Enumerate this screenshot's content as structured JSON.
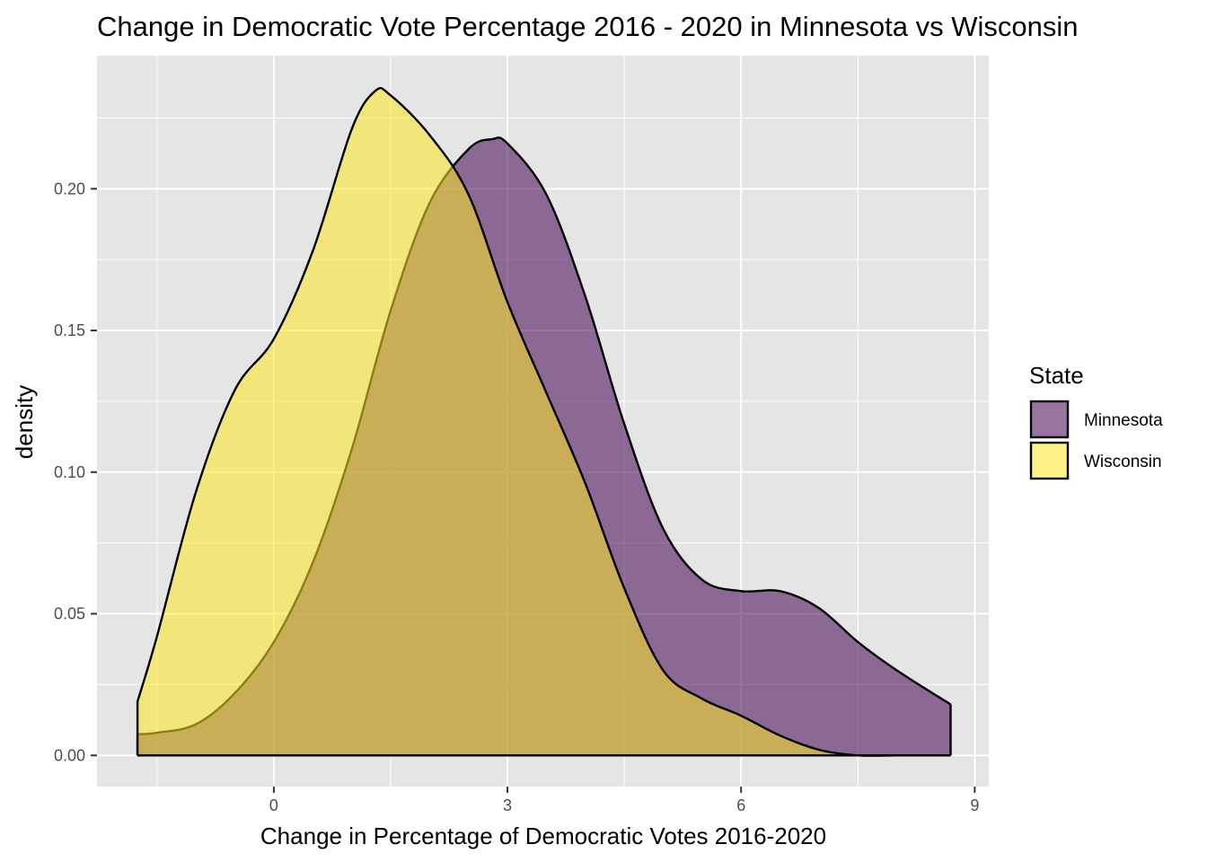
{
  "chart_data": {
    "type": "area",
    "title": "Change in Democratic Vote Percentage 2016 - 2020 in Minnesota vs Wisconsin",
    "xlabel": "Change in Percentage of Democratic Votes 2016-2020",
    "ylabel": "density",
    "xlim": [
      -2.27,
      9.18
    ],
    "ylim": [
      -0.011,
      0.247
    ],
    "x_ticks": [
      0,
      3,
      6,
      9
    ],
    "x_tick_labels": [
      "0",
      "3",
      "6",
      "9"
    ],
    "y_ticks": [
      0.0,
      0.05,
      0.1,
      0.15,
      0.2
    ],
    "y_tick_labels": [
      "0.00",
      "0.05",
      "0.10",
      "0.15",
      "0.20"
    ],
    "grid": true,
    "legend": {
      "title": "State",
      "placement": "right"
    },
    "colors": {
      "panel": "#e5e5e5",
      "grid": "#ffffff",
      "outline": "#000000"
    },
    "series": [
      {
        "name": "Minnesota",
        "fill": "#440154",
        "alpha": 0.55,
        "x": [
          -1.75,
          -1.5,
          -1.0,
          -0.5,
          0.0,
          0.5,
          1.0,
          1.5,
          2.0,
          2.5,
          2.8,
          3.0,
          3.5,
          4.0,
          4.5,
          5.0,
          5.5,
          6.0,
          6.5,
          7.0,
          7.5,
          8.0,
          8.69
        ],
        "y": [
          0.0075,
          0.008,
          0.011,
          0.022,
          0.04,
          0.068,
          0.108,
          0.157,
          0.195,
          0.214,
          0.2175,
          0.216,
          0.198,
          0.162,
          0.117,
          0.08,
          0.062,
          0.058,
          0.058,
          0.052,
          0.04,
          0.03,
          0.018
        ]
      },
      {
        "name": "Wisconsin",
        "fill": "#fde725",
        "alpha": 0.55,
        "x": [
          -1.75,
          -1.5,
          -1.0,
          -0.5,
          0.0,
          0.5,
          1.0,
          1.3,
          1.5,
          2.0,
          2.5,
          3.0,
          3.5,
          4.0,
          4.5,
          5.0,
          5.5,
          6.0,
          6.5,
          7.0,
          7.5,
          8.0,
          8.69
        ],
        "y": [
          0.019,
          0.042,
          0.093,
          0.129,
          0.147,
          0.178,
          0.221,
          0.2345,
          0.233,
          0.219,
          0.198,
          0.16,
          0.128,
          0.096,
          0.059,
          0.03,
          0.02,
          0.014,
          0.007,
          0.002,
          0.0,
          0.0,
          0.0
        ]
      }
    ]
  }
}
